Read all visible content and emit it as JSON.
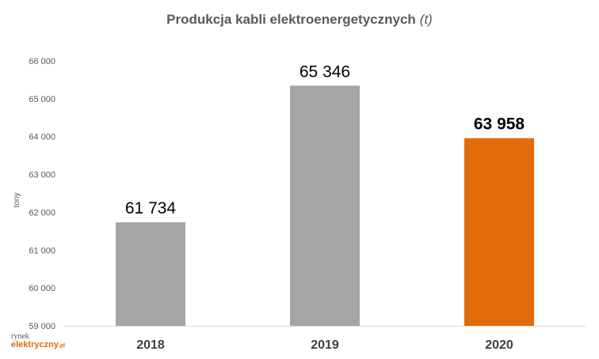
{
  "chart_data": {
    "type": "bar",
    "title": "Produkcja kabli elektroenergetycznych",
    "title_unit": "(t)",
    "ylabel": "tony",
    "xlabel": "",
    "categories": [
      "2018",
      "2019",
      "2020"
    ],
    "values": [
      61734,
      65346,
      63958
    ],
    "value_labels": [
      "61 734",
      "65 346",
      "63 958"
    ],
    "bar_colors": [
      "#a5a5a5",
      "#a5a5a5",
      "#e36c0a"
    ],
    "highlighted_category": "2020",
    "ylim": [
      59000,
      66000
    ],
    "yticks": [
      59000,
      60000,
      61000,
      62000,
      63000,
      64000,
      65000,
      66000
    ],
    "ytick_labels": [
      "59 000",
      "60 000",
      "61 000",
      "62 000",
      "63 000",
      "64 000",
      "65 000",
      "66 000"
    ],
    "grid": false,
    "legend": "none"
  },
  "logo": {
    "line1": "rynek",
    "line2": "elektryczny",
    "suffix": ".pl"
  }
}
